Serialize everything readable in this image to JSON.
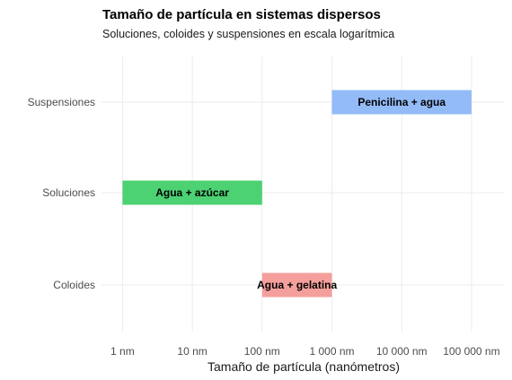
{
  "chart_data": {
    "type": "bar",
    "orientation": "horizontal-range",
    "title": "Tamaño de partícula en sistemas dispersos",
    "subtitle": "Soluciones, coloides y suspensiones en escala logarítmica",
    "xlabel": "Tamaño de partícula (nanómetros)",
    "ylabel": "",
    "x_scale": "log10",
    "xlim": [
      0.5,
      300000
    ],
    "grid": true,
    "legend": "none",
    "x_ticks": [
      {
        "value": 1,
        "label": "1 nm"
      },
      {
        "value": 10,
        "label": "10 nm"
      },
      {
        "value": 100,
        "label": "100 nm"
      },
      {
        "value": 1000,
        "label": "1 000 nm"
      },
      {
        "value": 10000,
        "label": "10 000 nm"
      },
      {
        "value": 100000,
        "label": "100 000 nm"
      }
    ],
    "categories": [
      "Suspensiones",
      "Soluciones",
      "Coloides"
    ],
    "bars": [
      {
        "category": "Suspensiones",
        "start": 1000,
        "end": 100000,
        "label": "Penicilina + agua",
        "color": "#93bbf7"
      },
      {
        "category": "Soluciones",
        "start": 1,
        "end": 100,
        "label": "Agua + azúcar",
        "color": "#4cd173"
      },
      {
        "category": "Coloides",
        "start": 100,
        "end": 1000,
        "label": "Agua + gelatina",
        "color": "#f59f9c"
      }
    ]
  }
}
